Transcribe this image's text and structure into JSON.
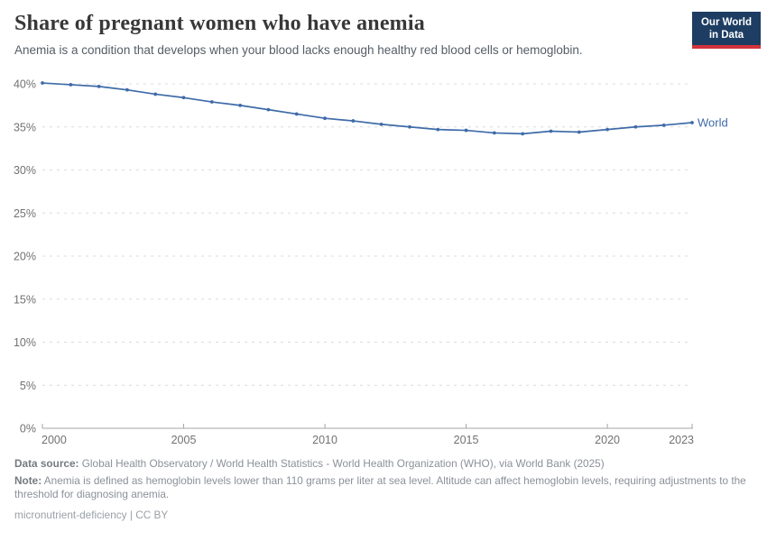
{
  "header": {
    "title": "Share of pregnant women who have anemia",
    "subtitle": "Anemia is a condition that develops when your blood lacks enough healthy red blood cells or hemoglobin.",
    "logo_line1": "Our World",
    "logo_line2": "in Data"
  },
  "chart_data": {
    "type": "line",
    "title": "Share of pregnant women who have anemia",
    "xlabel": "",
    "ylabel": "",
    "x": [
      2000,
      2001,
      2002,
      2003,
      2004,
      2005,
      2006,
      2007,
      2008,
      2009,
      2010,
      2011,
      2012,
      2013,
      2014,
      2015,
      2016,
      2017,
      2018,
      2019,
      2020,
      2021,
      2022,
      2023
    ],
    "series": [
      {
        "name": "World",
        "values": [
          40.1,
          39.9,
          39.7,
          39.3,
          38.8,
          38.4,
          37.9,
          37.5,
          37.0,
          36.5,
          36.0,
          35.7,
          35.3,
          35.0,
          34.7,
          34.6,
          34.3,
          34.2,
          34.5,
          34.4,
          34.7,
          35.0,
          35.2,
          35.5
        ]
      }
    ],
    "xlim": [
      2000,
      2023
    ],
    "ylim": [
      0,
      40
    ],
    "yticks": [
      0,
      5,
      10,
      15,
      20,
      25,
      30,
      35,
      40
    ],
    "ytick_suffix": "%",
    "xticks": [
      2000,
      2005,
      2010,
      2015,
      2020,
      2023
    ],
    "grid": "horizontal-dashed",
    "legend_position": "end-of-line",
    "colors": {
      "line": "#3e6ba8",
      "grid": "#dcdcdc",
      "axis": "#a5a5a5",
      "tick": "#717171"
    }
  },
  "footer": {
    "datasource_label": "Data source:",
    "datasource_text": "Global Health Observatory / World Health Statistics - World Health Organization (WHO), via World Bank (2025)",
    "note_label": "Note:",
    "note_text": "Anemia is defined as hemoglobin levels lower than 110 grams per liter at sea level. Altitude can affect hemoglobin levels, requiring adjustments to the threshold for diagnosing anemia.",
    "license": "micronutrient-deficiency | CC BY"
  }
}
